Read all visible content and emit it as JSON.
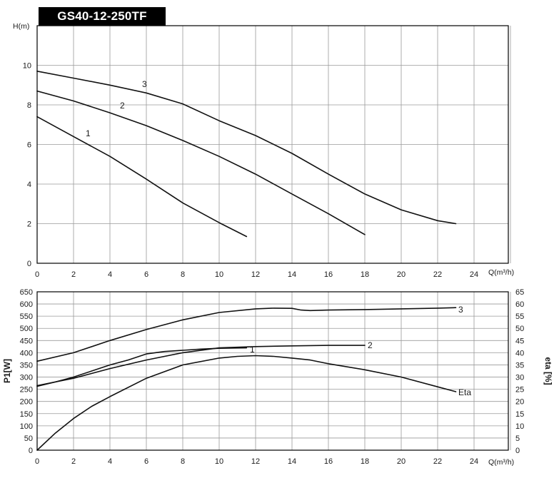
{
  "title": "GS40-12-250TF",
  "chart_data": [
    {
      "type": "line",
      "ylabel": "H(m)",
      "xlabel": "Q(m³/h)",
      "xlim": [
        0,
        26
      ],
      "ylim": [
        0,
        12
      ],
      "xticks": [
        0,
        2,
        4,
        6,
        8,
        10,
        12,
        14,
        16,
        18,
        20,
        22,
        24
      ],
      "yticks": [
        0,
        2,
        4,
        6,
        8,
        10
      ],
      "grid": true,
      "series": [
        {
          "name": "1",
          "x": [
            0,
            2,
            4,
            6,
            8,
            10,
            11.5
          ],
          "y": [
            7.4,
            6.4,
            5.4,
            4.25,
            3.05,
            2.05,
            1.35
          ]
        },
        {
          "name": "2",
          "x": [
            0,
            2,
            4,
            6,
            8,
            10,
            12,
            14,
            16,
            18
          ],
          "y": [
            8.7,
            8.2,
            7.6,
            6.95,
            6.2,
            5.4,
            4.5,
            3.5,
            2.5,
            1.45
          ]
        },
        {
          "name": "3",
          "x": [
            0,
            2,
            4,
            6,
            8,
            10,
            12,
            14,
            16,
            18,
            20,
            22,
            23
          ],
          "y": [
            9.7,
            9.35,
            9.0,
            8.6,
            8.05,
            7.2,
            6.45,
            5.55,
            4.5,
            3.5,
            2.7,
            2.15,
            2.0
          ]
        }
      ]
    },
    {
      "type": "line",
      "ylabel": "P1[W]",
      "y2label": "eta  [%]",
      "xlabel": "Q(m³/h)",
      "xlim": [
        0,
        26
      ],
      "ylim": [
        0,
        650
      ],
      "y2lim": [
        0,
        65
      ],
      "xticks": [
        0,
        2,
        4,
        6,
        8,
        10,
        12,
        14,
        16,
        18,
        20,
        22,
        24
      ],
      "yticks": [
        0,
        50,
        100,
        150,
        200,
        250,
        300,
        350,
        400,
        450,
        500,
        550,
        600,
        650
      ],
      "y2ticks": [
        0,
        5,
        10,
        15,
        20,
        25,
        30,
        35,
        40,
        45,
        50,
        55,
        60,
        65
      ],
      "grid": true,
      "series": [
        {
          "name": "1",
          "x": [
            0,
            1,
            2,
            3,
            4,
            5,
            6,
            7,
            8,
            9,
            10,
            11.5
          ],
          "y": [
            262,
            280,
            300,
            325,
            350,
            370,
            395,
            405,
            410,
            415,
            418,
            420
          ]
        },
        {
          "name": "2",
          "x": [
            0,
            2,
            4,
            6,
            8,
            10,
            12,
            14,
            16,
            18
          ],
          "y": [
            265,
            295,
            335,
            370,
            400,
            420,
            425,
            428,
            430,
            430
          ]
        },
        {
          "name": "3",
          "x": [
            0,
            2,
            4,
            6,
            8,
            10,
            12,
            13,
            14,
            14.5,
            15,
            16,
            18,
            20,
            22,
            23
          ],
          "y": [
            365,
            400,
            450,
            495,
            535,
            565,
            580,
            583,
            582,
            575,
            573,
            575,
            577,
            580,
            583,
            585
          ]
        },
        {
          "name": "Eta",
          "axis": "y2",
          "x": [
            0,
            1,
            2,
            3,
            4,
            6,
            8,
            10,
            11,
            12,
            13,
            14,
            15,
            16,
            18,
            20,
            22,
            23
          ],
          "y": [
            0,
            7,
            13,
            18,
            22,
            29.5,
            35,
            37.8,
            38.5,
            38.8,
            38.5,
            37.8,
            37,
            35.5,
            33,
            30,
            26,
            24
          ]
        }
      ]
    }
  ]
}
